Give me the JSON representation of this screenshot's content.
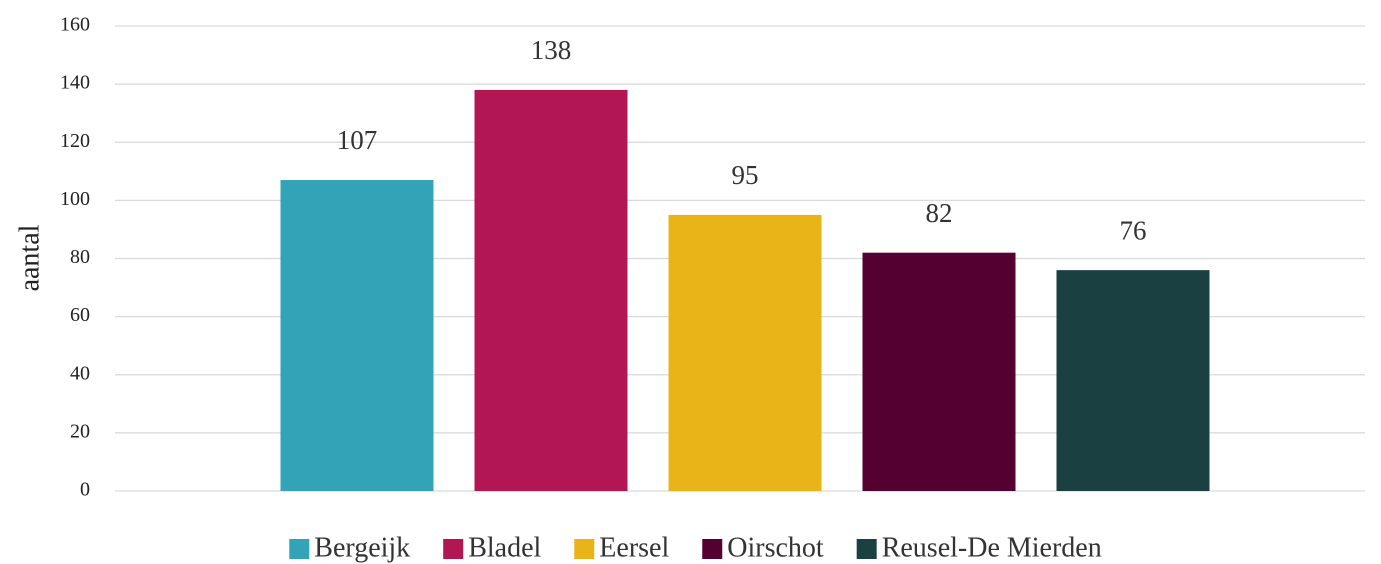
{
  "chart_data": {
    "type": "bar",
    "y_label": "aantal",
    "series": [
      {
        "name": "Bergeijk",
        "color": "#33a4b7",
        "values": [
          107
        ]
      },
      {
        "name": "Bladel",
        "color": "#b31753",
        "values": [
          138
        ]
      },
      {
        "name": "Eersel",
        "color": "#e8b418",
        "values": [
          95
        ]
      },
      {
        "name": "Oirschot",
        "color": "#540030",
        "values": [
          82
        ]
      },
      {
        "name": "Reusel-De Mierden",
        "color": "#1a4041",
        "values": [
          76
        ]
      }
    ],
    "ylim": [
      0,
      160
    ],
    "yticks": [
      0,
      20,
      40,
      60,
      80,
      100,
      120,
      140,
      160
    ],
    "grid": true,
    "legend": "bottom"
  }
}
